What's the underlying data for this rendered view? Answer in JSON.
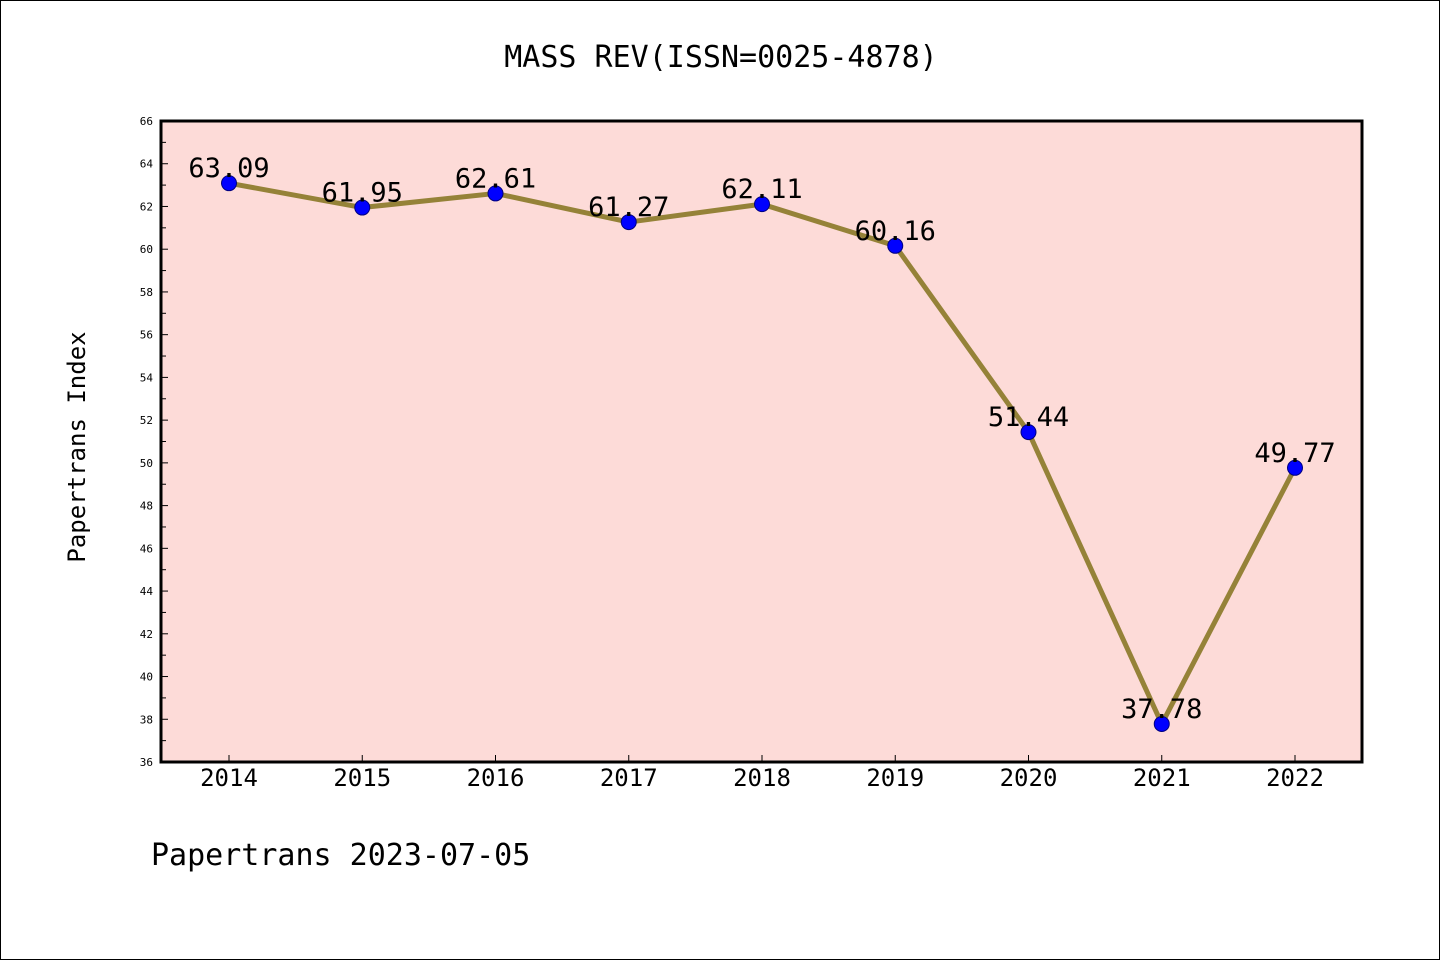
{
  "chart_data": {
    "type": "line",
    "title": "MASS REV(ISSN=0025-4878)",
    "xlabel": "",
    "ylabel": "Papertrans Index",
    "categories": [
      "2014",
      "2015",
      "2016",
      "2017",
      "2018",
      "2019",
      "2020",
      "2021",
      "2022"
    ],
    "series": [
      {
        "values": [
          63.09,
          61.95,
          62.61,
          61.27,
          62.11,
          60.16,
          51.44,
          37.78,
          49.77
        ],
        "data_labels": [
          "63.09",
          "61.95",
          "62.61",
          "61.27",
          "62.11",
          "60.16",
          "51.44",
          "37.78",
          "49.77"
        ]
      }
    ],
    "ylim": [
      36,
      66
    ],
    "yticks": [
      "36",
      "38",
      "40",
      "42",
      "44",
      "46",
      "48",
      "50",
      "52",
      "54",
      "56",
      "58",
      "60",
      "62",
      "64",
      "66"
    ],
    "grid": false,
    "legend": "none"
  },
  "footer": "Papertrans 2023-07-05",
  "colors": {
    "plot_background": "#fddbd8",
    "line": "#958238",
    "marker_fill": "#0000ff",
    "marker_edge": "#000080"
  }
}
